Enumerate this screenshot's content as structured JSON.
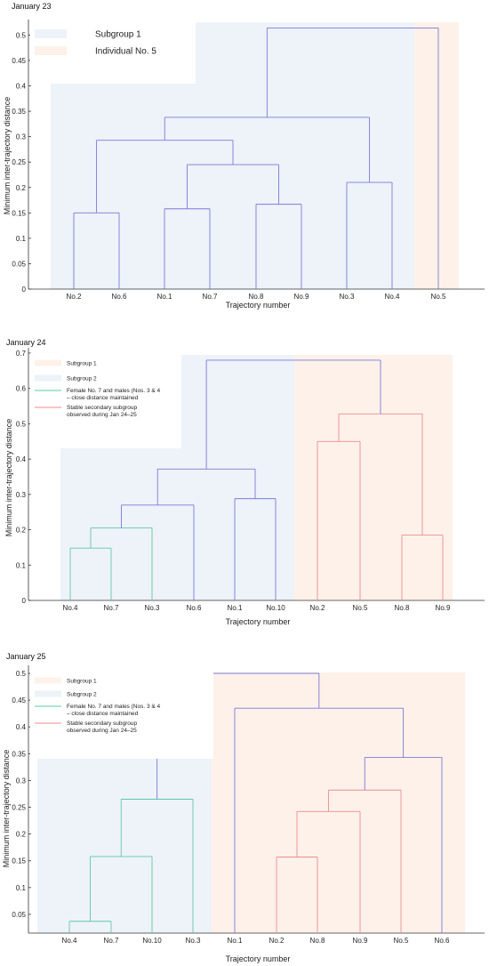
{
  "chart_data": [
    {
      "type": "dendrogram",
      "title": "January 23",
      "xlabel": "Trajectory number",
      "ylabel": "Minimum inter-trajectory distance",
      "ylim": [
        0,
        0.52
      ],
      "yticks": [
        "0",
        "0.05",
        "0.1",
        "0.15",
        "0.2",
        "0.25",
        "0.3",
        "0.35",
        "0.4",
        "0.45",
        "0.5"
      ],
      "leaves": [
        "No.2",
        "No.6",
        "No.1",
        "No.7",
        "No.8",
        "No.9",
        "No.3",
        "No.4",
        "No.5"
      ],
      "merges": [
        {
          "a": "No.2",
          "b": "No.6",
          "height": 0.15,
          "color": "#7b7bd6"
        },
        {
          "a": "No.1",
          "b": "No.7",
          "height": 0.158,
          "color": "#7b7bd6"
        },
        {
          "a": "No.8",
          "b": "No.9",
          "height": 0.167,
          "color": "#7b7bd6"
        },
        {
          "a": "No.3",
          "b": "No.4",
          "height": 0.21,
          "color": "#7b7bd6"
        },
        {
          "a": "No.1-No.7",
          "b": "No.8-No.9",
          "height": 0.245,
          "color": "#7b7bd6"
        },
        {
          "a": "No.2-No.6",
          "b": "No.1-No.9",
          "height": 0.293,
          "color": "#7b7bd6"
        },
        {
          "a": "No.2-No.9",
          "b": "No.3-No.4",
          "height": 0.338,
          "color": "#7b7bd6"
        },
        {
          "a": "No.2-No.4",
          "b": "No.5",
          "height": 0.514,
          "color": "#7b7bd6"
        }
      ],
      "legend": [
        {
          "label": "Subgroup 1",
          "color": "#eef2f9",
          "kind": "patch"
        },
        {
          "label": "Individual No. 5",
          "color": "#fdf1ea",
          "kind": "patch"
        }
      ]
    },
    {
      "type": "dendrogram",
      "title": "January 24",
      "xlabel": "Trajectory number",
      "ylabel": "Minimum inter-trajectory distance",
      "ylim": [
        0,
        0.7
      ],
      "yticks": [
        "0",
        "0.1",
        "0.2",
        "0.3",
        "0.4",
        "0.5",
        "0.6",
        "0.7"
      ],
      "leaves": [
        "No.4",
        "No.7",
        "No.3",
        "No.6",
        "No.1",
        "No.10",
        "No.2",
        "No.5",
        "No.8",
        "No.9"
      ],
      "merges": [
        {
          "a": "No.4",
          "b": "No.7",
          "height": 0.148,
          "color": "#5fc9a8"
        },
        {
          "a": "No.4-No.7",
          "b": "No.3",
          "height": 0.205,
          "color": "#5fc9a8"
        },
        {
          "a": "No.4-No.3",
          "b": "No.6",
          "height": 0.27,
          "color": "#7b7bd6"
        },
        {
          "a": "No.1",
          "b": "No.10",
          "height": 0.288,
          "color": "#7b7bd6"
        },
        {
          "a": "No.4-No.6",
          "b": "No.1-No.10",
          "height": 0.372,
          "color": "#7b7bd6"
        },
        {
          "a": "No.8",
          "b": "No.9",
          "height": 0.185,
          "color": "#ee8e8e"
        },
        {
          "a": "No.2",
          "b": "No.5",
          "height": 0.45,
          "color": "#ee8e8e"
        },
        {
          "a": "No.2-No.5",
          "b": "No.8-No.9",
          "height": 0.528,
          "color": "#ee8e8e"
        },
        {
          "a": "No.4-No.10",
          "b": "No.2-No.9",
          "height": 0.68,
          "color": "#7b7bd6"
        }
      ],
      "legend": [
        {
          "label": "Subgroup 1",
          "color": "#fdf1ea",
          "kind": "patch"
        },
        {
          "label": "Subgroup 2",
          "color": "#eef2f9",
          "kind": "patch"
        },
        {
          "label": "Female No. 7 and males (Nos. 3 & 4",
          "label2": "– close distance maintained",
          "color": "#5fc9a8",
          "kind": "line"
        },
        {
          "label": "Stable secondary subgroup",
          "label2": "observed during Jan 24–25",
          "color": "#ee8e8e",
          "kind": "line"
        }
      ]
    },
    {
      "type": "dendrogram",
      "title": "January 25",
      "xlabel": "Trajectory number",
      "ylabel": "Minimum inter-trajectory distance",
      "ylim": [
        0.015,
        0.505
      ],
      "yticks": [
        "0.05",
        "0.1",
        "0.15",
        "0.2",
        "0.25",
        "0.3",
        "0.35",
        "0.4",
        "0.45",
        "0.5"
      ],
      "leaves": [
        "No.4",
        "No.7",
        "No.10",
        "No.3",
        "No.1",
        "No.2",
        "No.8",
        "No.9",
        "No.5",
        "No.6"
      ],
      "merges": [
        {
          "a": "No.4",
          "b": "No.7",
          "height": 0.037,
          "color": "#5fc9a8"
        },
        {
          "a": "No.4-No.7",
          "b": "No.10",
          "height": 0.158,
          "color": "#5fc9a8"
        },
        {
          "a": "No.4-No.10",
          "b": "No.3",
          "height": 0.265,
          "color": "#5fc9a8"
        },
        {
          "a": "No.2",
          "b": "No.8",
          "height": 0.157,
          "color": "#ee8e8e"
        },
        {
          "a": "No.2-No.8",
          "b": "No.9",
          "height": 0.242,
          "color": "#ee8e8e"
        },
        {
          "a": "No.2-No.9",
          "b": "No.5",
          "height": 0.282,
          "color": "#ee8e8e"
        },
        {
          "a": "No.2-No.5",
          "b": "No.6",
          "height": 0.343,
          "color": "#7b7bd6"
        },
        {
          "a": "No.1",
          "b": "No.2-No.6",
          "height": 0.435,
          "color": "#7b7bd6"
        },
        {
          "a": "No.4-No.3",
          "b": "No.1-No.6",
          "height": 0.5,
          "color": "#7b7bd6"
        }
      ],
      "legend": [
        {
          "label": "Subgroup 1",
          "color": "#fdf1ea",
          "kind": "patch"
        },
        {
          "label": "Subgroup 2",
          "color": "#eef2f9",
          "kind": "patch"
        },
        {
          "label": "Female No. 7 and males (Nos. 3 & 4",
          "label2": "– close distance maintained",
          "color": "#5fc9a8",
          "kind": "line"
        },
        {
          "label": "Stable secondary subgroup",
          "label2": "observed during Jan 24–25",
          "color": "#ee8e8e",
          "kind": "line"
        }
      ]
    }
  ]
}
